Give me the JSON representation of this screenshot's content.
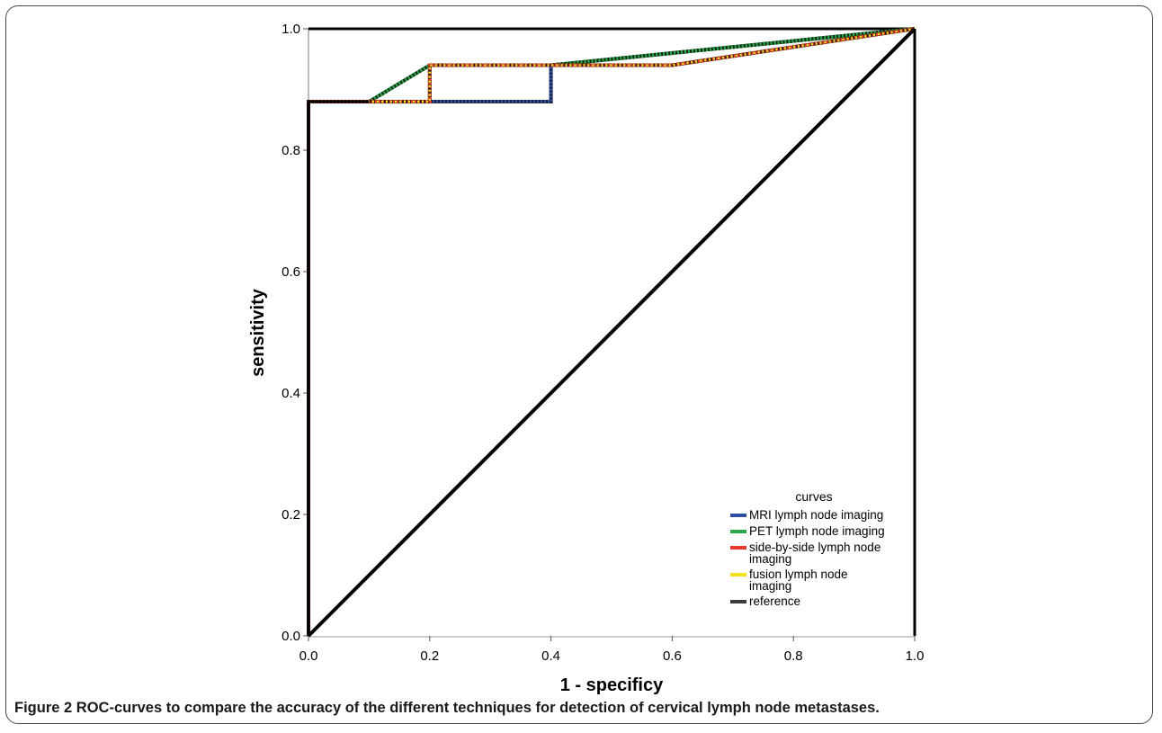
{
  "figure": {
    "caption_lead": "Figure 2",
    "caption_text": "ROC-curves to compare the accuracy of the different techniques for detection of cervical lymph node metastases."
  },
  "chart_data": {
    "type": "line",
    "xlabel": "1 - specificy",
    "ylabel": "sensitivity",
    "xlim": [
      0,
      1
    ],
    "ylim": [
      0,
      1
    ],
    "x_ticks": [
      "0.0",
      "0.2",
      "0.4",
      "0.6",
      "0.8",
      "1.0"
    ],
    "y_ticks": [
      "0.0",
      "0.2",
      "0.4",
      "0.6",
      "0.8",
      "1.0"
    ],
    "grid": false,
    "legend": {
      "title": "curves",
      "placement": "bottom-right",
      "entries": [
        {
          "label": "MRI lymph node imaging",
          "color": "#2f4fa3"
        },
        {
          "label": "PET lymph node imaging",
          "color": "#2aa84a"
        },
        {
          "label": "side-by-side lymph node imaging",
          "color": "#e8392b"
        },
        {
          "label": "fusion lymph node imaging",
          "color": "#f2e21c"
        },
        {
          "label": "reference",
          "color": "#3a3a3a"
        }
      ]
    },
    "series": [
      {
        "name": "MRI lymph node imaging",
        "color": "#2f4fa3",
        "points": [
          [
            0,
            0
          ],
          [
            0,
            0.88
          ],
          [
            0.4,
            0.88
          ],
          [
            0.4,
            0.94
          ],
          [
            1.0,
            1.0
          ]
        ]
      },
      {
        "name": "PET lymph node imaging",
        "color": "#2aa84a",
        "points": [
          [
            0,
            0
          ],
          [
            0,
            0.88
          ],
          [
            0.1,
            0.88
          ],
          [
            0.2,
            0.94
          ],
          [
            0.4,
            0.94
          ],
          [
            1.0,
            1.0
          ]
        ]
      },
      {
        "name": "side-by-side lymph node imaging",
        "color": "#e8392b",
        "points": [
          [
            0,
            0
          ],
          [
            0,
            0.88
          ],
          [
            0.2,
            0.88
          ],
          [
            0.2,
            0.94
          ],
          [
            0.4,
            0.94
          ],
          [
            0.6,
            0.94
          ],
          [
            1.0,
            1.0
          ]
        ]
      },
      {
        "name": "fusion lymph node imaging",
        "color": "#f2e21c",
        "points": [
          [
            0,
            0
          ],
          [
            0,
            0.88
          ],
          [
            0.2,
            0.88
          ],
          [
            0.2,
            0.94
          ],
          [
            0.4,
            0.94
          ],
          [
            0.6,
            0.94
          ],
          [
            1.0,
            1.0
          ]
        ]
      },
      {
        "name": "reference",
        "color": "#000000",
        "points": [
          [
            0,
            0
          ],
          [
            1,
            1
          ]
        ]
      }
    ]
  }
}
